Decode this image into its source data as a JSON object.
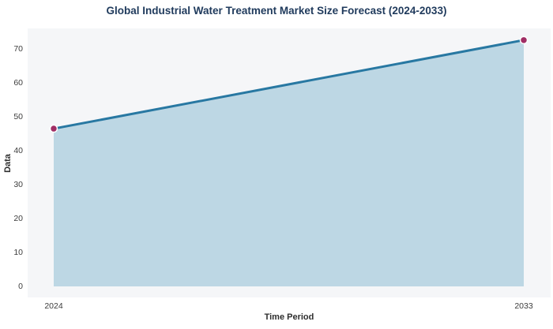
{
  "chart_data": {
    "type": "area",
    "title": "Global Industrial Water Treatment Market Size Forecast (2024-2033)",
    "xlabel": "Time Period",
    "ylabel": "Data",
    "categories": [
      "2024",
      "2033"
    ],
    "values": [
      46.5,
      72.6
    ],
    "yticks": [
      0,
      10,
      20,
      30,
      40,
      50,
      60,
      70
    ],
    "ylim": [
      -3.5,
      76
    ],
    "grid": false,
    "legend_position": "none",
    "colors": {
      "line": "#2878a2",
      "area_fill": "#bdd7e4",
      "point": "#a02d64",
      "point_halo": "#ffffff",
      "plot_background": "#f5f6f8",
      "title_text": "#1f3a5c",
      "axis_label_text": "#2e2e2e",
      "tick_text": "#3d3d3d"
    }
  }
}
